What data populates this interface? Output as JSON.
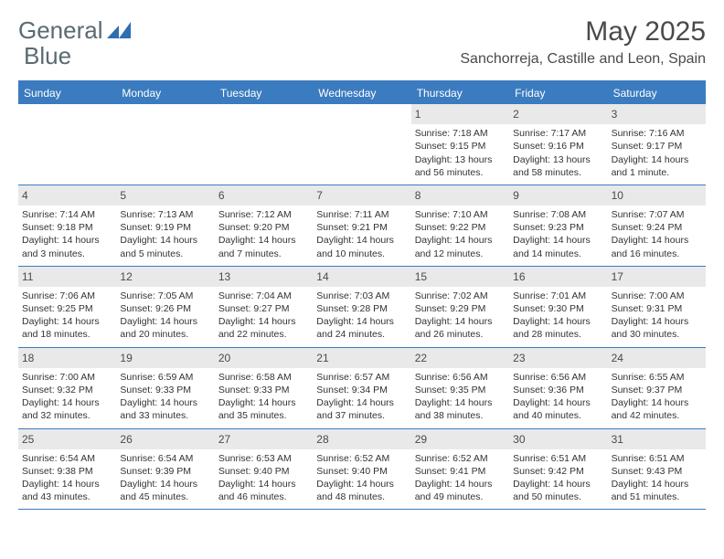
{
  "logo": {
    "word1": "General",
    "word2": "Blue"
  },
  "title": "May 2025",
  "location": "Sanchorreja, Castille and Leon, Spain",
  "colors": {
    "header_bg": "#3b7bbf",
    "header_text": "#ffffff",
    "daynum_bg": "#e9e9e9",
    "border": "#3b7bbf",
    "body_text": "#333333",
    "title_text": "#4a4a4a",
    "logo_text": "#5a6a72",
    "logo_icon": "#2f6fb0"
  },
  "weekdays": [
    "Sunday",
    "Monday",
    "Tuesday",
    "Wednesday",
    "Thursday",
    "Friday",
    "Saturday"
  ],
  "weeks": [
    [
      {
        "n": "",
        "sr": "",
        "ss": "",
        "dl1": "",
        "dl2": ""
      },
      {
        "n": "",
        "sr": "",
        "ss": "",
        "dl1": "",
        "dl2": ""
      },
      {
        "n": "",
        "sr": "",
        "ss": "",
        "dl1": "",
        "dl2": ""
      },
      {
        "n": "",
        "sr": "",
        "ss": "",
        "dl1": "",
        "dl2": ""
      },
      {
        "n": "1",
        "sr": "Sunrise: 7:18 AM",
        "ss": "Sunset: 9:15 PM",
        "dl1": "Daylight: 13 hours",
        "dl2": "and 56 minutes."
      },
      {
        "n": "2",
        "sr": "Sunrise: 7:17 AM",
        "ss": "Sunset: 9:16 PM",
        "dl1": "Daylight: 13 hours",
        "dl2": "and 58 minutes."
      },
      {
        "n": "3",
        "sr": "Sunrise: 7:16 AM",
        "ss": "Sunset: 9:17 PM",
        "dl1": "Daylight: 14 hours",
        "dl2": "and 1 minute."
      }
    ],
    [
      {
        "n": "4",
        "sr": "Sunrise: 7:14 AM",
        "ss": "Sunset: 9:18 PM",
        "dl1": "Daylight: 14 hours",
        "dl2": "and 3 minutes."
      },
      {
        "n": "5",
        "sr": "Sunrise: 7:13 AM",
        "ss": "Sunset: 9:19 PM",
        "dl1": "Daylight: 14 hours",
        "dl2": "and 5 minutes."
      },
      {
        "n": "6",
        "sr": "Sunrise: 7:12 AM",
        "ss": "Sunset: 9:20 PM",
        "dl1": "Daylight: 14 hours",
        "dl2": "and 7 minutes."
      },
      {
        "n": "7",
        "sr": "Sunrise: 7:11 AM",
        "ss": "Sunset: 9:21 PM",
        "dl1": "Daylight: 14 hours",
        "dl2": "and 10 minutes."
      },
      {
        "n": "8",
        "sr": "Sunrise: 7:10 AM",
        "ss": "Sunset: 9:22 PM",
        "dl1": "Daylight: 14 hours",
        "dl2": "and 12 minutes."
      },
      {
        "n": "9",
        "sr": "Sunrise: 7:08 AM",
        "ss": "Sunset: 9:23 PM",
        "dl1": "Daylight: 14 hours",
        "dl2": "and 14 minutes."
      },
      {
        "n": "10",
        "sr": "Sunrise: 7:07 AM",
        "ss": "Sunset: 9:24 PM",
        "dl1": "Daylight: 14 hours",
        "dl2": "and 16 minutes."
      }
    ],
    [
      {
        "n": "11",
        "sr": "Sunrise: 7:06 AM",
        "ss": "Sunset: 9:25 PM",
        "dl1": "Daylight: 14 hours",
        "dl2": "and 18 minutes."
      },
      {
        "n": "12",
        "sr": "Sunrise: 7:05 AM",
        "ss": "Sunset: 9:26 PM",
        "dl1": "Daylight: 14 hours",
        "dl2": "and 20 minutes."
      },
      {
        "n": "13",
        "sr": "Sunrise: 7:04 AM",
        "ss": "Sunset: 9:27 PM",
        "dl1": "Daylight: 14 hours",
        "dl2": "and 22 minutes."
      },
      {
        "n": "14",
        "sr": "Sunrise: 7:03 AM",
        "ss": "Sunset: 9:28 PM",
        "dl1": "Daylight: 14 hours",
        "dl2": "and 24 minutes."
      },
      {
        "n": "15",
        "sr": "Sunrise: 7:02 AM",
        "ss": "Sunset: 9:29 PM",
        "dl1": "Daylight: 14 hours",
        "dl2": "and 26 minutes."
      },
      {
        "n": "16",
        "sr": "Sunrise: 7:01 AM",
        "ss": "Sunset: 9:30 PM",
        "dl1": "Daylight: 14 hours",
        "dl2": "and 28 minutes."
      },
      {
        "n": "17",
        "sr": "Sunrise: 7:00 AM",
        "ss": "Sunset: 9:31 PM",
        "dl1": "Daylight: 14 hours",
        "dl2": "and 30 minutes."
      }
    ],
    [
      {
        "n": "18",
        "sr": "Sunrise: 7:00 AM",
        "ss": "Sunset: 9:32 PM",
        "dl1": "Daylight: 14 hours",
        "dl2": "and 32 minutes."
      },
      {
        "n": "19",
        "sr": "Sunrise: 6:59 AM",
        "ss": "Sunset: 9:33 PM",
        "dl1": "Daylight: 14 hours",
        "dl2": "and 33 minutes."
      },
      {
        "n": "20",
        "sr": "Sunrise: 6:58 AM",
        "ss": "Sunset: 9:33 PM",
        "dl1": "Daylight: 14 hours",
        "dl2": "and 35 minutes."
      },
      {
        "n": "21",
        "sr": "Sunrise: 6:57 AM",
        "ss": "Sunset: 9:34 PM",
        "dl1": "Daylight: 14 hours",
        "dl2": "and 37 minutes."
      },
      {
        "n": "22",
        "sr": "Sunrise: 6:56 AM",
        "ss": "Sunset: 9:35 PM",
        "dl1": "Daylight: 14 hours",
        "dl2": "and 38 minutes."
      },
      {
        "n": "23",
        "sr": "Sunrise: 6:56 AM",
        "ss": "Sunset: 9:36 PM",
        "dl1": "Daylight: 14 hours",
        "dl2": "and 40 minutes."
      },
      {
        "n": "24",
        "sr": "Sunrise: 6:55 AM",
        "ss": "Sunset: 9:37 PM",
        "dl1": "Daylight: 14 hours",
        "dl2": "and 42 minutes."
      }
    ],
    [
      {
        "n": "25",
        "sr": "Sunrise: 6:54 AM",
        "ss": "Sunset: 9:38 PM",
        "dl1": "Daylight: 14 hours",
        "dl2": "and 43 minutes."
      },
      {
        "n": "26",
        "sr": "Sunrise: 6:54 AM",
        "ss": "Sunset: 9:39 PM",
        "dl1": "Daylight: 14 hours",
        "dl2": "and 45 minutes."
      },
      {
        "n": "27",
        "sr": "Sunrise: 6:53 AM",
        "ss": "Sunset: 9:40 PM",
        "dl1": "Daylight: 14 hours",
        "dl2": "and 46 minutes."
      },
      {
        "n": "28",
        "sr": "Sunrise: 6:52 AM",
        "ss": "Sunset: 9:40 PM",
        "dl1": "Daylight: 14 hours",
        "dl2": "and 48 minutes."
      },
      {
        "n": "29",
        "sr": "Sunrise: 6:52 AM",
        "ss": "Sunset: 9:41 PM",
        "dl1": "Daylight: 14 hours",
        "dl2": "and 49 minutes."
      },
      {
        "n": "30",
        "sr": "Sunrise: 6:51 AM",
        "ss": "Sunset: 9:42 PM",
        "dl1": "Daylight: 14 hours",
        "dl2": "and 50 minutes."
      },
      {
        "n": "31",
        "sr": "Sunrise: 6:51 AM",
        "ss": "Sunset: 9:43 PM",
        "dl1": "Daylight: 14 hours",
        "dl2": "and 51 minutes."
      }
    ]
  ]
}
